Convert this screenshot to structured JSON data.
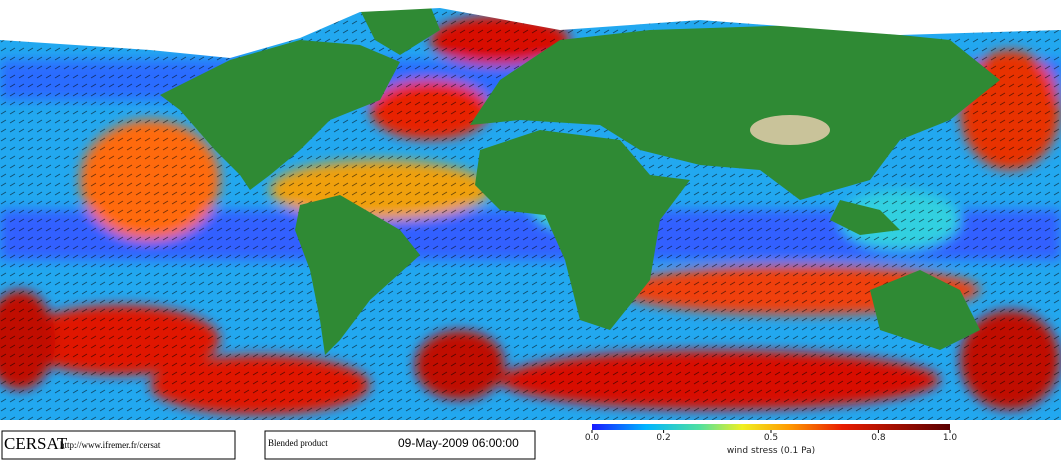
{
  "footer": {
    "logo": "CERSAT",
    "url": "http://www.ifremer.fr/cersat",
    "product": "Blended product",
    "date": "09-May-2009 06:00:00"
  },
  "colorbar": {
    "lim": [
      0,
      1
    ],
    "ticks": [
      {
        "value": 0,
        "label": "0.0"
      },
      0.2,
      0.5,
      0.8,
      {
        "value": 1,
        "label": "1.0"
      }
    ],
    "label": "wind stress (0.1 Pa)"
  }
}
